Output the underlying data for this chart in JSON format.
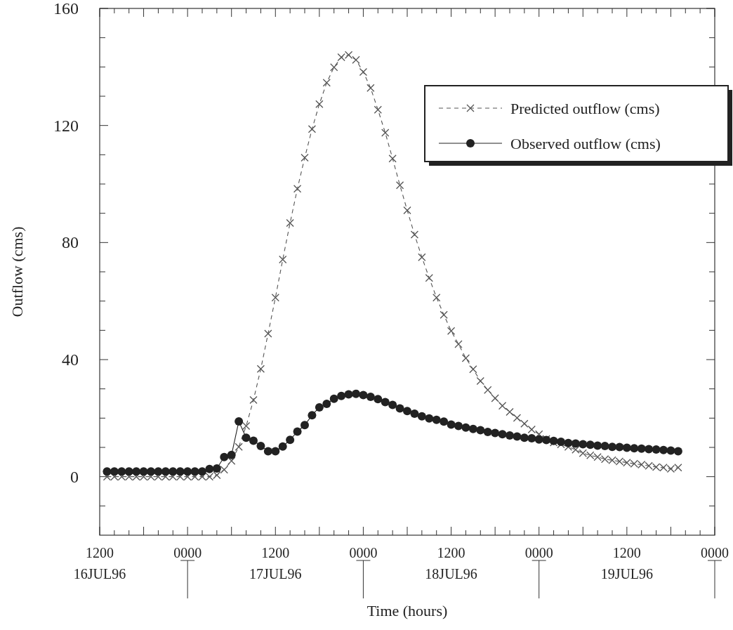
{
  "chart_data": {
    "type": "line",
    "xlabel": "Time (hours)",
    "ylabel": "Outflow (cms)",
    "xlim": [
      "1996-07-16T12:00",
      "1996-07-20T00:00"
    ],
    "xticks": [
      {
        "value": "1996-07-16T12:00",
        "label": "1200\n16JUL96"
      },
      {
        "value": "1996-07-16T14:00",
        "label": null
      },
      {
        "value": "1996-07-16T16:00",
        "label": null
      },
      {
        "value": "1996-07-16T18:00",
        "label": null
      },
      {
        "value": "1996-07-16T20:00",
        "label": null
      },
      {
        "value": "1996-07-16T22:00",
        "label": null
      },
      {
        "value": "1996-07-17T00:00",
        "label": "0000"
      },
      {
        "value": "1996-07-17T02:00",
        "label": null
      },
      {
        "value": "1996-07-17T04:00",
        "label": null
      },
      {
        "value": "1996-07-17T06:00",
        "label": null
      },
      {
        "value": "1996-07-17T08:00",
        "label": null
      },
      {
        "value": "1996-07-17T10:00",
        "label": null
      },
      {
        "value": "1996-07-17T12:00",
        "label": "1200\n17JUL96"
      },
      {
        "value": "1996-07-17T14:00",
        "label": null
      },
      {
        "value": "1996-07-17T16:00",
        "label": null
      },
      {
        "value": "1996-07-17T18:00",
        "label": null
      },
      {
        "value": "1996-07-17T20:00",
        "label": null
      },
      {
        "value": "1996-07-17T22:00",
        "label": null
      },
      {
        "value": "1996-07-18T00:00",
        "label": "0000"
      },
      {
        "value": "1996-07-18T02:00",
        "label": null
      },
      {
        "value": "1996-07-18T04:00",
        "label": null
      },
      {
        "value": "1996-07-18T06:00",
        "label": null
      },
      {
        "value": "1996-07-18T08:00",
        "label": null
      },
      {
        "value": "1996-07-18T10:00",
        "label": null
      },
      {
        "value": "1996-07-18T12:00",
        "label": "1200\n18JUL96"
      },
      {
        "value": "1996-07-18T14:00",
        "label": null
      },
      {
        "value": "1996-07-18T16:00",
        "label": null
      },
      {
        "value": "1996-07-18T18:00",
        "label": null
      },
      {
        "value": "1996-07-18T20:00",
        "label": null
      },
      {
        "value": "1996-07-18T22:00",
        "label": null
      },
      {
        "value": "1996-07-19T00:00",
        "label": "0000"
      },
      {
        "value": "1996-07-19T02:00",
        "label": null
      },
      {
        "value": "1996-07-19T04:00",
        "label": null
      },
      {
        "value": "1996-07-19T06:00",
        "label": null
      },
      {
        "value": "1996-07-19T08:00",
        "label": null
      },
      {
        "value": "1996-07-19T10:00",
        "label": null
      },
      {
        "value": "1996-07-19T12:00",
        "label": "1200\n19JUL96"
      },
      {
        "value": "1996-07-19T14:00",
        "label": null
      },
      {
        "value": "1996-07-19T16:00",
        "label": null
      },
      {
        "value": "1996-07-19T18:00",
        "label": null
      },
      {
        "value": "1996-07-19T20:00",
        "label": null
      },
      {
        "value": "1996-07-19T22:00",
        "label": null
      },
      {
        "value": "1996-07-20T00:00",
        "label": "0000"
      }
    ],
    "ylim": [
      -20,
      160
    ],
    "yticks": [
      {
        "value": -10,
        "label": null
      },
      0,
      {
        "value": 10,
        "label": null
      },
      {
        "value": 20,
        "label": null
      },
      {
        "value": 30,
        "label": null
      },
      40,
      {
        "value": 50,
        "label": null
      },
      {
        "value": 60,
        "label": null
      },
      {
        "value": 70,
        "label": null
      },
      80,
      {
        "value": 90,
        "label": null
      },
      {
        "value": 100,
        "label": null
      },
      {
        "value": 110,
        "label": null
      },
      120,
      {
        "value": 130,
        "label": null
      },
      {
        "value": 140,
        "label": null
      },
      {
        "value": 150,
        "label": null
      },
      160
    ],
    "grid": false,
    "legend": "top right",
    "x": [
      "1996-07-16T13:00",
      "1996-07-16T14:00",
      "1996-07-16T15:00",
      "1996-07-16T16:00",
      "1996-07-16T17:00",
      "1996-07-16T18:00",
      "1996-07-16T19:00",
      "1996-07-16T20:00",
      "1996-07-16T21:00",
      "1996-07-16T22:00",
      "1996-07-16T23:00",
      "1996-07-17T00:00",
      "1996-07-17T01:00",
      "1996-07-17T02:00",
      "1996-07-17T03:00",
      "1996-07-17T04:00",
      "1996-07-17T05:00",
      "1996-07-17T06:00",
      "1996-07-17T07:00",
      "1996-07-17T08:00",
      "1996-07-17T09:00",
      "1996-07-17T10:00",
      "1996-07-17T11:00",
      "1996-07-17T12:00",
      "1996-07-17T13:00",
      "1996-07-17T14:00",
      "1996-07-17T15:00",
      "1996-07-17T16:00",
      "1996-07-17T17:00",
      "1996-07-17T18:00",
      "1996-07-17T19:00",
      "1996-07-17T20:00",
      "1996-07-17T21:00",
      "1996-07-17T22:00",
      "1996-07-17T23:00",
      "1996-07-18T00:00",
      "1996-07-18T01:00",
      "1996-07-18T02:00",
      "1996-07-18T03:00",
      "1996-07-18T04:00",
      "1996-07-18T05:00",
      "1996-07-18T06:00",
      "1996-07-18T07:00",
      "1996-07-18T08:00",
      "1996-07-18T09:00",
      "1996-07-18T10:00",
      "1996-07-18T11:00",
      "1996-07-18T12:00",
      "1996-07-18T13:00",
      "1996-07-18T14:00",
      "1996-07-18T15:00",
      "1996-07-18T16:00",
      "1996-07-18T17:00",
      "1996-07-18T18:00",
      "1996-07-18T19:00",
      "1996-07-18T20:00",
      "1996-07-18T21:00",
      "1996-07-18T22:00",
      "1996-07-18T23:00",
      "1996-07-19T00:00",
      "1996-07-19T01:00",
      "1996-07-19T02:00",
      "1996-07-19T03:00",
      "1996-07-19T04:00",
      "1996-07-19T05:00",
      "1996-07-19T06:00",
      "1996-07-19T07:00",
      "1996-07-19T08:00",
      "1996-07-19T09:00",
      "1996-07-19T10:00",
      "1996-07-19T11:00",
      "1996-07-19T12:00",
      "1996-07-19T13:00",
      "1996-07-19T14:00",
      "1996-07-19T15:00",
      "1996-07-19T16:00",
      "1996-07-19T17:00",
      "1996-07-19T18:00",
      "1996-07-19T19:00"
    ],
    "series": [
      {
        "name": "Predicted outflow (cms)",
        "color": "#555555",
        "marker": "cross",
        "line_style": "dashed",
        "values": [
          0,
          0,
          0,
          0,
          0,
          0,
          0,
          0,
          0,
          0,
          0,
          0,
          0,
          0,
          0,
          0.5,
          2.4,
          5.4,
          10.2,
          17.3,
          26.2,
          36.8,
          48.9,
          61.2,
          74.2,
          86.7,
          98.4,
          109,
          118.8,
          127.3,
          134.6,
          139.9,
          143.3,
          144.1,
          142.4,
          138.3,
          132.8,
          125.4,
          117.5,
          108.7,
          99.6,
          91,
          82.7,
          75,
          67.9,
          61.2,
          55.3,
          49.8,
          45.3,
          40.5,
          36.7,
          32.7,
          29.6,
          26.8,
          24.2,
          22.1,
          20.1,
          18.1,
          16.1,
          14.5,
          12.9,
          11.7,
          11,
          10.2,
          9.2,
          8,
          7.3,
          6.7,
          6,
          5.6,
          5.2,
          4.8,
          4.4,
          4.1,
          3.7,
          3.3,
          3.1,
          2.7,
          3.1
        ]
      },
      {
        "name": "Observed outflow (cms)",
        "color": "#222222",
        "marker": "circle",
        "line_style": "solid",
        "values": [
          1.8,
          1.8,
          1.8,
          1.8,
          1.8,
          1.8,
          1.8,
          1.8,
          1.8,
          1.8,
          1.8,
          1.8,
          1.8,
          1.8,
          2.6,
          2.8,
          6.7,
          7.4,
          18.9,
          13.3,
          12.3,
          10.5,
          8.7,
          8.7,
          10.3,
          12.6,
          15.4,
          17.6,
          21,
          23.7,
          24.9,
          26.6,
          27.6,
          28.1,
          28.3,
          27.9,
          27.3,
          26.5,
          25.5,
          24.5,
          23.3,
          22.4,
          21.5,
          20.6,
          19.9,
          19.4,
          18.8,
          17.8,
          17.3,
          16.8,
          16.3,
          15.9,
          15.3,
          14.9,
          14.5,
          14.1,
          13.7,
          13.3,
          13.1,
          12.7,
          12.5,
          12.2,
          11.9,
          11.5,
          11.3,
          11.1,
          10.9,
          10.6,
          10.5,
          10.2,
          10.1,
          9.9,
          9.7,
          9.6,
          9.4,
          9.3,
          9.1,
          8.9,
          8.7
        ]
      }
    ]
  }
}
